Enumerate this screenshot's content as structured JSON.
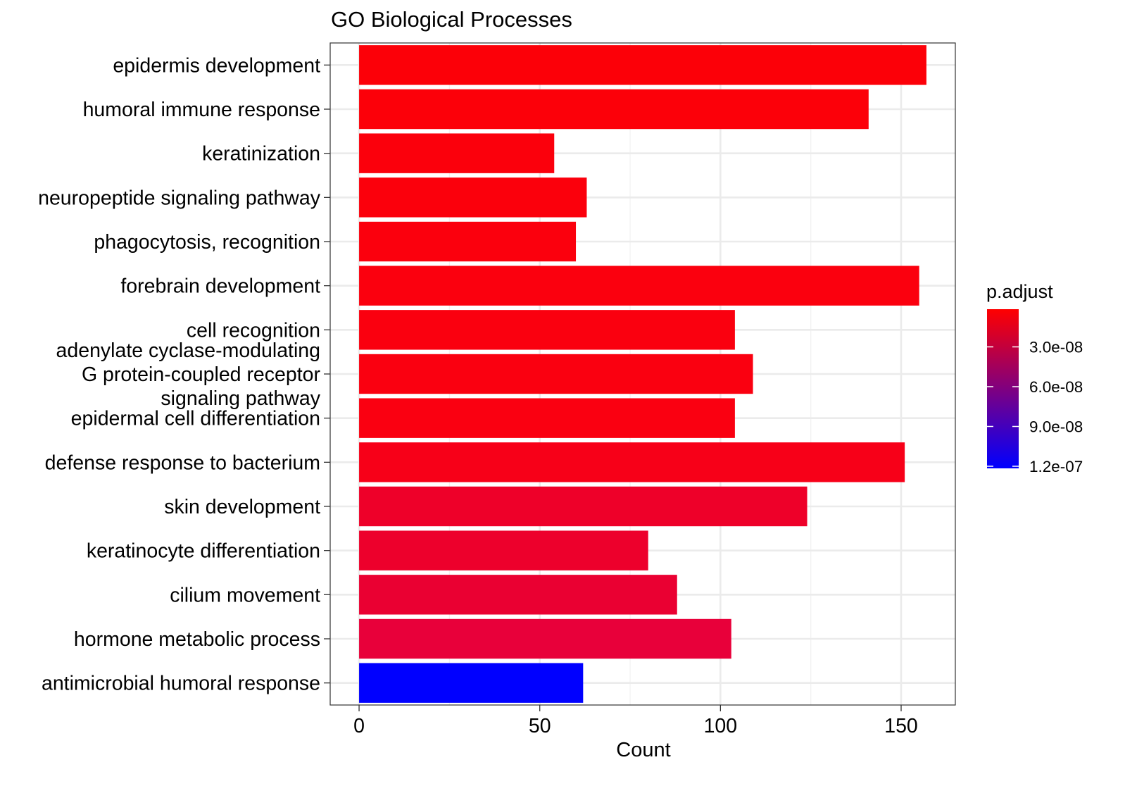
{
  "chart_data": {
    "type": "bar",
    "orientation": "horizontal",
    "title": "GO Biological Processes",
    "xlabel": "Count",
    "ylabel": "",
    "xlim": [
      -8,
      165
    ],
    "xticks": [
      0,
      50,
      100,
      150
    ],
    "x_minor_ticks": [
      25,
      75,
      125
    ],
    "grid": true,
    "categories": [
      "epidermis development",
      "humoral immune response",
      "keratinization",
      "neuropeptide signaling pathway",
      "phagocytosis, recognition",
      "forebrain development",
      "cell recognition",
      "adenylate cyclase-modulating G protein-coupled receptor signaling pathway",
      "epidermal cell differentiation",
      "defense response to bacterium",
      "skin development",
      "keratinocyte differentiation",
      "cilium movement",
      "hormone metabolic process",
      "antimicrobial humoral response"
    ],
    "category_lines": [
      [
        "epidermis development"
      ],
      [
        "humoral immune response"
      ],
      [
        "keratinization"
      ],
      [
        "neuropeptide signaling pathway"
      ],
      [
        "phagocytosis, recognition"
      ],
      [
        "forebrain development"
      ],
      [
        "cell recognition"
      ],
      [
        "adenylate cyclase-modulating",
        "G protein-coupled receptor",
        "signaling pathway"
      ],
      [
        "epidermal cell differentiation"
      ],
      [
        "defense response to bacterium"
      ],
      [
        "skin development"
      ],
      [
        "keratinocyte differentiation"
      ],
      [
        "cilium movement"
      ],
      [
        "hormone metabolic process"
      ],
      [
        "antimicrobial humoral response"
      ]
    ],
    "values": [
      157,
      141,
      54,
      63,
      60,
      155,
      104,
      109,
      104,
      151,
      124,
      80,
      88,
      103,
      62
    ],
    "bar_colors": [
      "#fc0008",
      "#fc0009",
      "#fb000c",
      "#fb000c",
      "#fb000d",
      "#fb000e",
      "#fa000f",
      "#fa0010",
      "#fa0011",
      "#f70018",
      "#ee0029",
      "#ed002c",
      "#ea0032",
      "#e8003a",
      "#0000ff"
    ],
    "legend": {
      "title": "p.adjust",
      "placement": "right",
      "min": 0,
      "max": 1.2e-07,
      "color_low": "#ff0000",
      "color_high": "#0000ff",
      "ticks": [
        {
          "value": 3e-08,
          "label": "3.0e-08"
        },
        {
          "value": 6e-08,
          "label": "6.0e-08"
        },
        {
          "value": 9e-08,
          "label": "9.0e-08"
        },
        {
          "value": 1.2e-07,
          "label": "1.2e-07"
        }
      ]
    }
  }
}
